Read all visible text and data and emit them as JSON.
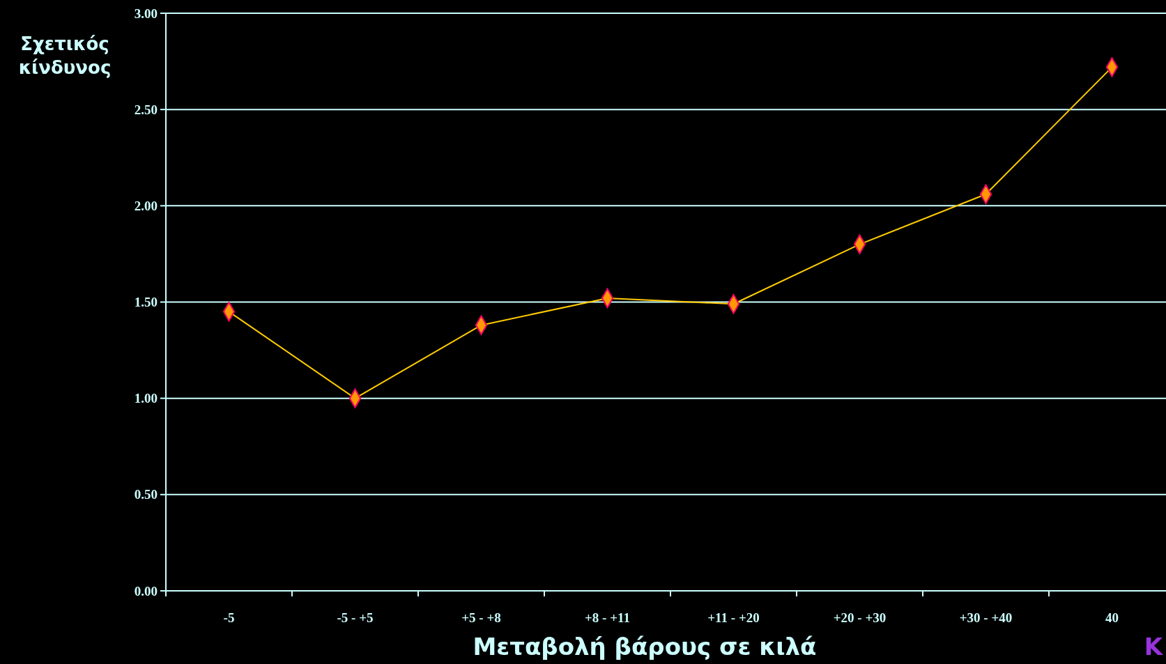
{
  "chart_data": {
    "type": "line",
    "xlabel": "Μεταβολή βάρους σε κιλά",
    "ylabel": "Σχετικός\nκίνδυνος",
    "categories": [
      "-5",
      "-5 - +5",
      "+5 - +8",
      "+8 - +11",
      "+11 - +20",
      "+20 - +30",
      "+30 - +40",
      "40"
    ],
    "series": [
      {
        "color": "#ffcc00",
        "values": [
          1.45,
          1.0,
          1.38,
          1.52,
          1.49,
          1.8,
          2.06,
          2.72
        ]
      }
    ],
    "ylim": [
      0,
      3
    ],
    "yticks": [
      {
        "value": 0,
        "label": "0.00"
      },
      {
        "value": 0.5,
        "label": "0.50"
      },
      {
        "value": 1,
        "label": "1.00"
      },
      {
        "value": 1.5,
        "label": "1.50"
      },
      {
        "value": 2,
        "label": "2.00"
      },
      {
        "value": 2.5,
        "label": "2.50"
      },
      {
        "value": 3,
        "label": "3.00"
      }
    ],
    "grid": "y",
    "marker": "diamond",
    "line_style": "solid",
    "annotations": [
      "K"
    ]
  }
}
